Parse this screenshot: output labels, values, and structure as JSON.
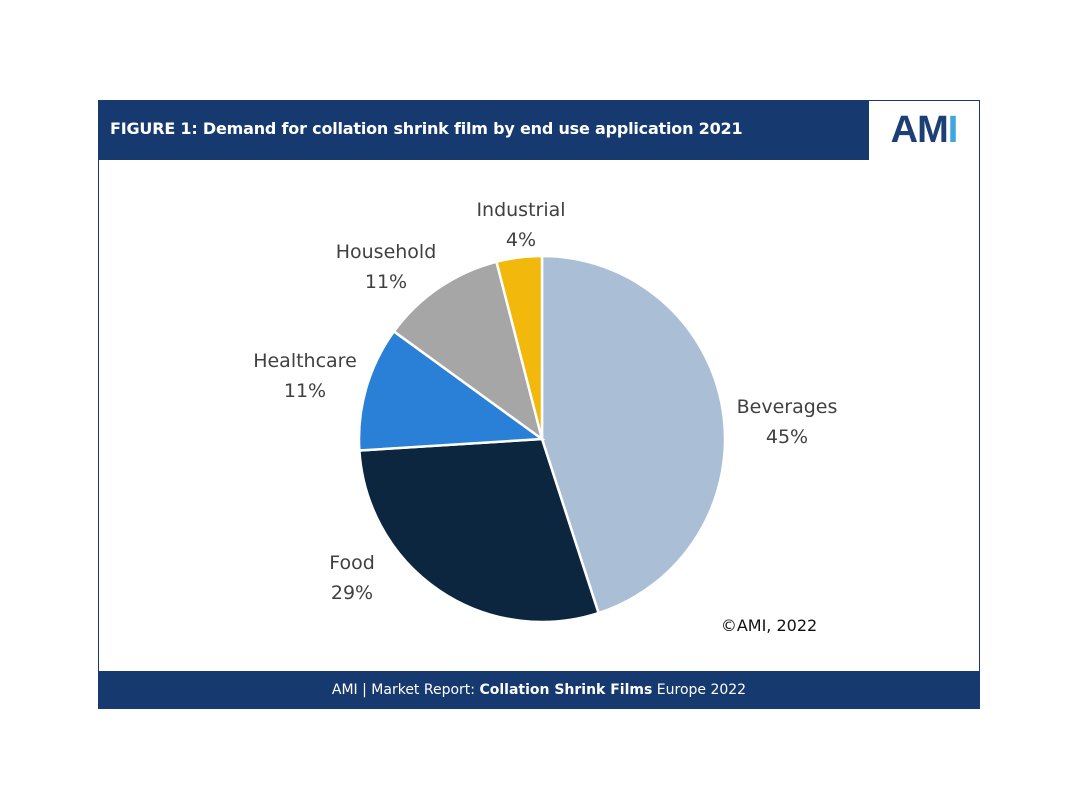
{
  "header": {
    "title": "FIGURE 1: Demand for collation shrink film by end use application 2021"
  },
  "logo": {
    "text_am": "AM",
    "text_i": "I"
  },
  "footer": {
    "prefix": "AMI | Market Report: ",
    "bold": "Collation Shrink Films",
    "suffix": " Europe 2022"
  },
  "copyright": "©AMI, 2022",
  "chart_data": {
    "type": "pie",
    "title": "FIGURE 1: Demand for collation shrink film by end use application 2021",
    "slices": [
      {
        "label": "Beverages",
        "value": 45,
        "display": "45%",
        "color": "#aabfd5"
      },
      {
        "label": "Food",
        "value": 29,
        "display": "29%",
        "color": "#0c2640"
      },
      {
        "label": "Healthcare",
        "value": 11,
        "display": "11%",
        "color": "#2a7fd6"
      },
      {
        "label": "Household",
        "value": 11,
        "display": "11%",
        "color": "#a6a6a6"
      },
      {
        "label": "Industrial",
        "value": 4,
        "display": "4%",
        "color": "#f2b80c"
      }
    ]
  }
}
